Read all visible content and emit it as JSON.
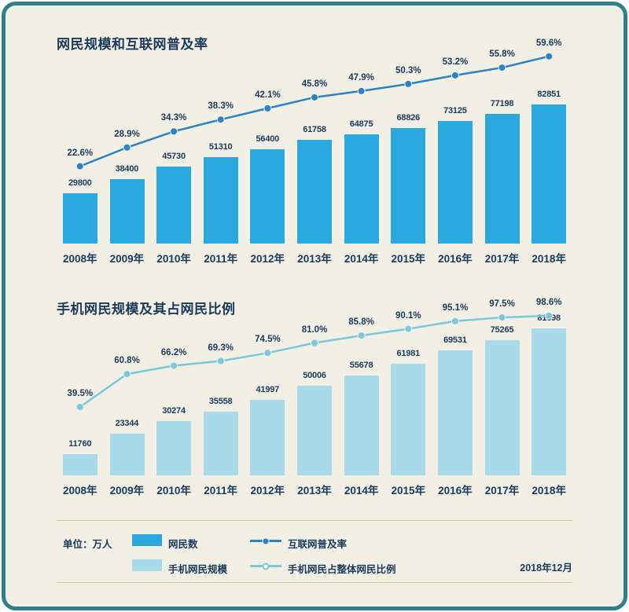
{
  "colors": {
    "card_bg": "#f2efe5",
    "card_border": "#2f7e8e",
    "text_navy": "#1a3a5c",
    "bar_dark": "#29a9e0",
    "bar_light": "#a9dae9",
    "line_dark": "#2b83c4",
    "line_light": "#79c9de",
    "divider": "#cfc9b8"
  },
  "chart_data": [
    {
      "type": "bar+line",
      "title": "网民规模和互联网普及率",
      "unit": "万人",
      "grid": false,
      "categories": [
        "2008年",
        "2009年",
        "2010年",
        "2011年",
        "2012年",
        "2013年",
        "2014年",
        "2015年",
        "2016年",
        "2017年",
        "2018年"
      ],
      "series": [
        {
          "name": "网民数",
          "type": "bar",
          "values": [
            29800,
            38400,
            45730,
            51310,
            56400,
            61758,
            64875,
            68826,
            73125,
            77198,
            82851
          ]
        },
        {
          "name": "互联网普及率",
          "type": "line",
          "values": [
            22.6,
            28.9,
            34.3,
            38.3,
            42.1,
            45.8,
            47.9,
            50.3,
            53.2,
            55.8,
            59.6
          ],
          "labels": [
            "22.6%",
            "28.9%",
            "34.3%",
            "38.3%",
            "42.1%",
            "45.8%",
            "47.9%",
            "50.3%",
            "53.2%",
            "55.8%",
            "59.6%"
          ]
        }
      ]
    },
    {
      "type": "bar+line",
      "title": "手机网民规模及其占网民比例",
      "unit": "万人",
      "grid": false,
      "categories": [
        "2008年",
        "2009年",
        "2010年",
        "2011年",
        "2012年",
        "2013年",
        "2014年",
        "2015年",
        "2016年",
        "2017年",
        "2018年"
      ],
      "series": [
        {
          "name": "手机网民规模",
          "type": "bar",
          "values": [
            11760,
            23344,
            30274,
            35558,
            41997,
            50006,
            55678,
            61981,
            69531,
            75265,
            81698
          ]
        },
        {
          "name": "手机网民占整体网民比例",
          "type": "line",
          "values": [
            39.5,
            60.8,
            66.2,
            69.3,
            74.5,
            81.0,
            85.8,
            90.1,
            95.1,
            97.5,
            98.6
          ],
          "labels": [
            "39.5%",
            "60.8%",
            "66.2%",
            "69.3%",
            "74.5%",
            "81.0%",
            "85.8%",
            "90.1%",
            "95.1%",
            "97.5%",
            "98.6%"
          ]
        }
      ]
    }
  ],
  "legend": {
    "unit_label": "单位：万人",
    "date_label": "2018年12月",
    "items": [
      {
        "label": "网民数",
        "swatch": "bar-dark"
      },
      {
        "label": "手机网民规模",
        "swatch": "bar-light"
      },
      {
        "label": "互联网普及率",
        "swatch": "line-dark"
      },
      {
        "label": "手机网民占整体网民比例",
        "swatch": "line-light"
      }
    ]
  }
}
